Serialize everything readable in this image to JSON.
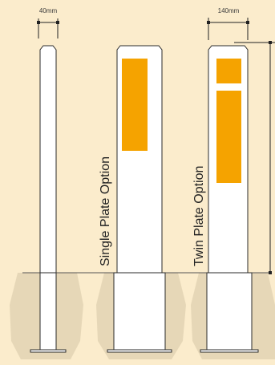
{
  "dimensions": {
    "narrow_width_label": "40mm",
    "wide_width_label": "140mm"
  },
  "labels": {
    "single_plate": "Single Plate Option",
    "twin_plate": "Twin Plate Option"
  },
  "colors": {
    "background": "#fbeccc",
    "ground_shadow": "#e6d7b7",
    "post_fill": "#ffffff",
    "post_outline": "#2b2b2b",
    "reflective_plate": "#f5a300",
    "dimension_line": "#222222"
  }
}
